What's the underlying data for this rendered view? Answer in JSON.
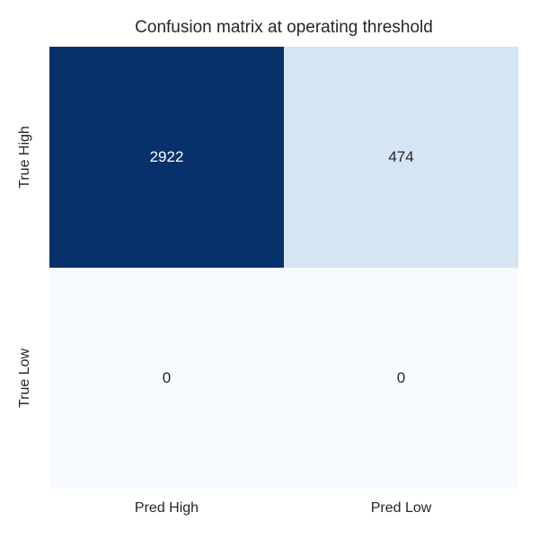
{
  "chart_data": {
    "type": "heatmap",
    "title": "Confusion matrix at operating threshold",
    "rows": [
      "True High",
      "True Low"
    ],
    "cols": [
      "Pred High",
      "Pred Low"
    ],
    "values": [
      [
        2922,
        474
      ],
      [
        0,
        0
      ]
    ],
    "colormap": "Blues",
    "vmin": 0,
    "vmax": 2922,
    "cell_colors": [
      [
        "#08306b",
        "#d6e5f4"
      ],
      [
        "#f7fbff",
        "#f7fbff"
      ]
    ],
    "text_colors": [
      [
        "#ffffff",
        "#262626"
      ],
      [
        "#262626",
        "#262626"
      ]
    ],
    "grid": false,
    "legend": "none",
    "background_color": "#ffffff",
    "label_color": "#262626"
  }
}
